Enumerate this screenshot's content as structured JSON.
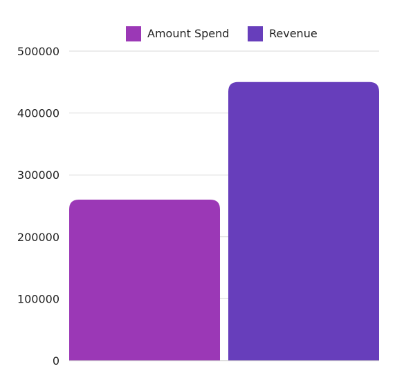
{
  "chart_data": {
    "type": "bar",
    "categories": [
      "Amount Spend",
      "Revenue"
    ],
    "values": [
      260000,
      450000
    ],
    "colors": [
      "#9b38b6",
      "#673ebb"
    ],
    "ylim": [
      0,
      500000
    ],
    "yticks": [
      0,
      100000,
      200000,
      300000,
      400000,
      500000
    ],
    "ytick_labels": [
      "0",
      "100000",
      "200000",
      "300000",
      "400000",
      "500000"
    ],
    "grid": true,
    "legend": {
      "position": "top-center",
      "entries": [
        "Amount Spend",
        "Revenue"
      ]
    }
  }
}
